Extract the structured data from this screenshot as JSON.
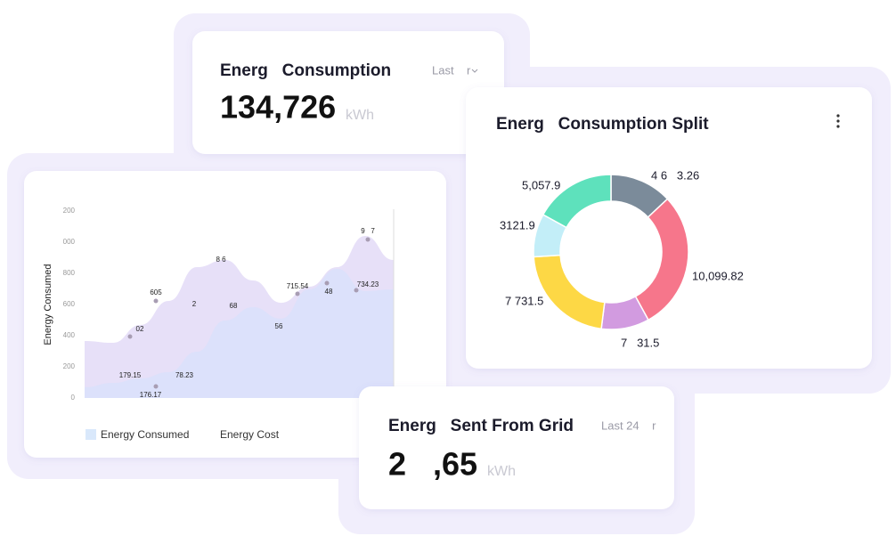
{
  "top_card": {
    "title": "Energ   Consumption",
    "period": "Last    r",
    "value": "134,726",
    "unit": "kWh"
  },
  "split_card": {
    "title": "Energ   Consumption Split",
    "donut": {
      "values": [
        13,
        29,
        10,
        22,
        9,
        17
      ],
      "colors": [
        "#7b8b9a",
        "#f6768b",
        "#d29be0",
        "#fdd845",
        "#c3eef8",
        "#5ee1bc"
      ],
      "labels": [
        "4 6   3.26",
        "10,099.82",
        "7   31.5",
        "7 731.5",
        "3121.9",
        "5,057.9"
      ]
    }
  },
  "trend_card": {
    "y_label": "Energy Consumed",
    "ylim": [
      0,
      1200
    ],
    "yticks": [
      0,
      200,
      400,
      600,
      800,
      {
        "value": 1000,
        "label": "000"
      },
      {
        "value": 1200,
        "label": "200"
      }
    ],
    "series": [
      {
        "name": "Energy Cost",
        "color": "#e7e0f8",
        "values": [
          366,
          354,
          469,
          623,
          840,
          886,
          754,
          611,
          714,
          840,
          1040,
          886
        ]
      },
      {
        "name": "Energy Consumed",
        "color": "#d9e1fb",
        "values": [
          69,
          97,
          126,
          166,
          297,
          497,
          583,
          509,
          697,
          829,
          686,
          697
        ]
      }
    ],
    "annotations": [
      "02",
      "605",
      "2",
      "8 6",
      "68",
      "56",
      "715.54",
      "48",
      "9   7",
      "734.23",
      "179.15",
      "176.17",
      "78.23"
    ]
  },
  "grid_card": {
    "title": "Energ   Sent From Grid",
    "period": "Last 24    r",
    "value": "2   ,65",
    "unit": "kWh"
  }
}
